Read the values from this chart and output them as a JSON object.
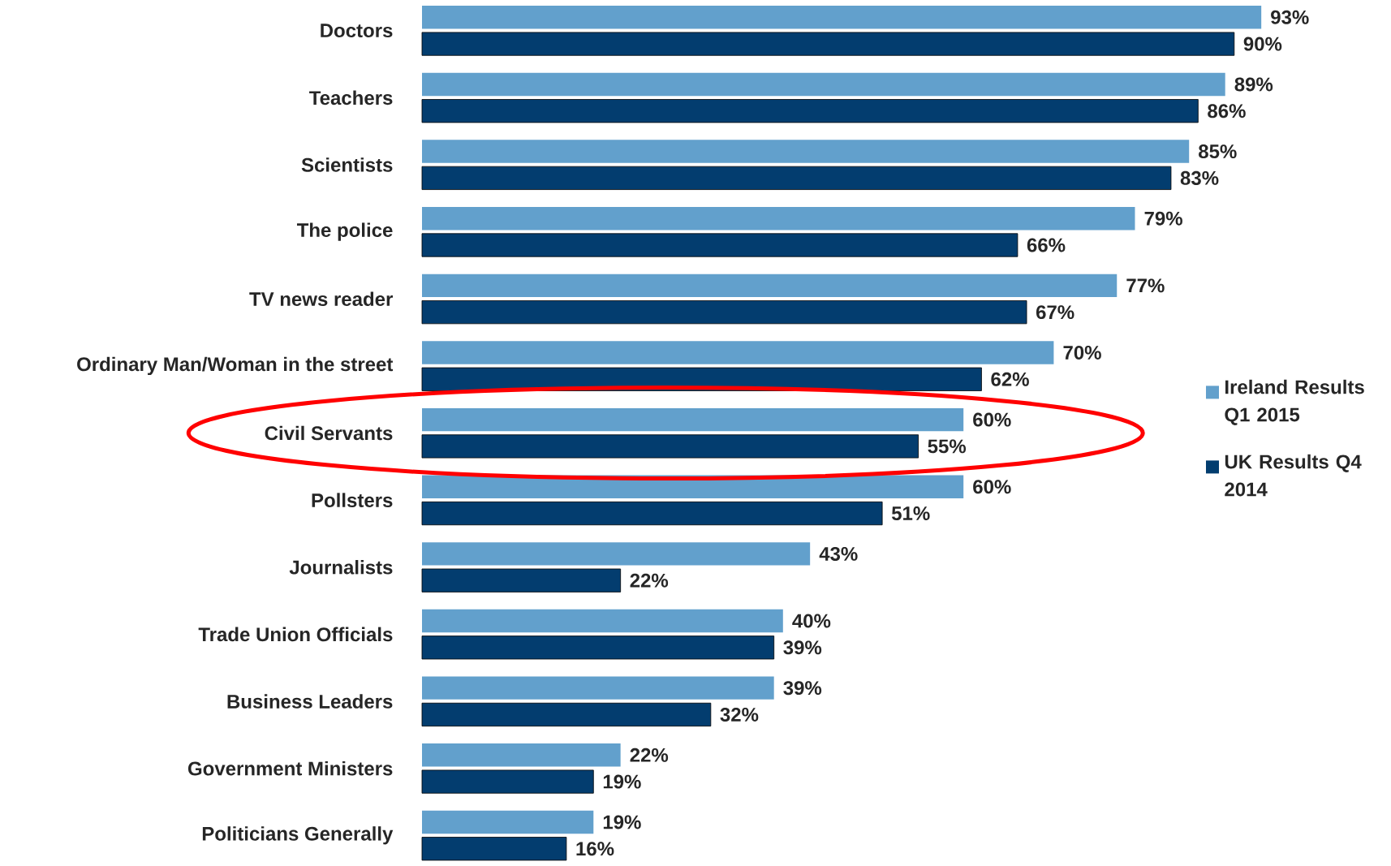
{
  "chart_data": {
    "type": "bar",
    "orientation": "horizontal",
    "categories": [
      "Doctors",
      "Teachers",
      "Scientists",
      "The police",
      "TV news reader",
      "Ordinary Man/Woman in the street",
      "Civil Servants",
      "Pollsters",
      "Journalists",
      "Trade Union Officials",
      "Business Leaders",
      "Government Ministers",
      "Politicians Generally"
    ],
    "series": [
      {
        "name": "Ireland Results Q1 2015",
        "color": "#62a0cc",
        "values": [
          93,
          89,
          85,
          79,
          77,
          70,
          60,
          60,
          43,
          40,
          39,
          22,
          19
        ],
        "value_labels": [
          "93%",
          "89%",
          "85%",
          "79%",
          "77%",
          "70%",
          "60%",
          "60%",
          "43%",
          "40%",
          "39%",
          "22%",
          "19%"
        ]
      },
      {
        "name": "UK Results Q4 2014",
        "color": "#033d6f",
        "values": [
          90,
          86,
          83,
          66,
          67,
          62,
          55,
          51,
          22,
          39,
          32,
          19,
          16
        ],
        "value_labels": [
          "90%",
          "86%",
          "83%",
          "66%",
          "67%",
          "62%",
          "55%",
          "51%",
          "22%",
          "39%",
          "32%",
          "19%",
          "16%"
        ]
      }
    ],
    "legend": "right",
    "tick_labels": "y",
    "grid": false
  }
}
